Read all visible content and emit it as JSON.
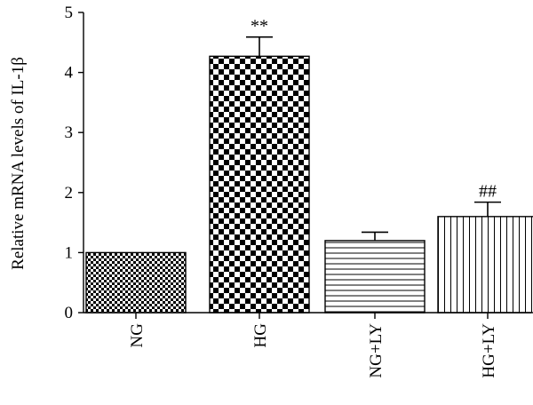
{
  "chart_data": {
    "type": "bar",
    "title": "",
    "xlabel": "",
    "ylabel": "Relative mRNA levels of IL-1β",
    "ylim": [
      0,
      5
    ],
    "yticks": [
      0,
      1,
      2,
      3,
      4,
      5
    ],
    "categories": [
      "NG",
      "HG",
      "NG+LY",
      "HG+LY"
    ],
    "values": [
      1.0,
      4.27,
      1.2,
      1.6
    ],
    "errors": [
      0,
      0.32,
      0.14,
      0.24
    ],
    "patterns": [
      "fine-checker",
      "coarse-checker",
      "horizontal-lines",
      "vertical-lines"
    ],
    "annotations": [
      "",
      "**",
      "",
      "##"
    ],
    "grid": false,
    "legend": "none"
  }
}
